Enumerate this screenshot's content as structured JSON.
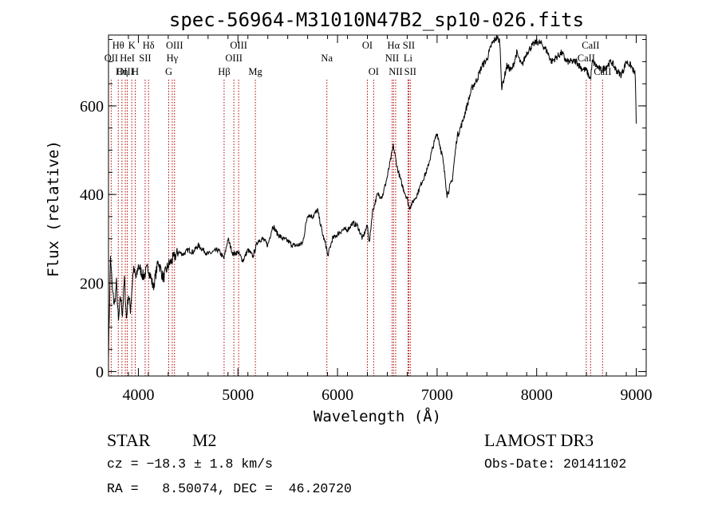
{
  "chart_data": {
    "type": "line",
    "title": "spec-56964-M31010N47B2_sp10-026.fits",
    "xlabel": "Wavelength (Å)",
    "ylabel": "Flux (relative)",
    "xlim": [
      3700,
      9100
    ],
    "ylim": [
      -10,
      760
    ],
    "x_ticks": [
      4000,
      5000,
      6000,
      7000,
      8000,
      9000
    ],
    "y_ticks": [
      0,
      200,
      400,
      600
    ],
    "x_minor_step": 200,
    "y_minor_step": 50,
    "spectrum": {
      "x": [
        3700,
        3720,
        3740,
        3760,
        3780,
        3800,
        3820,
        3840,
        3860,
        3880,
        3900,
        3920,
        3950,
        3980,
        4000,
        4050,
        4100,
        4150,
        4200,
        4250,
        4300,
        4350,
        4400,
        4450,
        4500,
        4550,
        4600,
        4700,
        4800,
        4860,
        4900,
        4950,
        5000,
        5050,
        5100,
        5150,
        5200,
        5250,
        5300,
        5350,
        5400,
        5450,
        5500,
        5550,
        5600,
        5650,
        5700,
        5750,
        5800,
        5850,
        5890,
        5900,
        5950,
        6000,
        6050,
        6100,
        6150,
        6200,
        6250,
        6300,
        6320,
        6350,
        6400,
        6450,
        6500,
        6560,
        6600,
        6650,
        6700,
        6720,
        6750,
        6800,
        6850,
        6900,
        6950,
        7000,
        7020,
        7050,
        7080,
        7100,
        7150,
        7200,
        7250,
        7300,
        7350,
        7400,
        7450,
        7500,
        7550,
        7600,
        7630,
        7650,
        7700,
        7750,
        7800,
        7850,
        7900,
        7950,
        8000,
        8050,
        8100,
        8150,
        8200,
        8250,
        8300,
        8350,
        8400,
        8450,
        8500,
        8540,
        8560,
        8600,
        8650,
        8700,
        8750,
        8800,
        8850,
        8900,
        8950,
        8990,
        9000
      ],
      "y": [
        40,
        260,
        180,
        150,
        200,
        110,
        170,
        130,
        210,
        120,
        175,
        140,
        230,
        210,
        240,
        215,
        235,
        190,
        250,
        210,
        240,
        255,
        270,
        265,
        275,
        270,
        285,
        265,
        275,
        255,
        300,
        265,
        270,
        250,
        275,
        260,
        295,
        300,
        285,
        330,
        310,
        300,
        295,
        285,
        285,
        290,
        355,
        350,
        365,
        310,
        280,
        260,
        300,
        310,
        320,
        320,
        335,
        330,
        300,
        330,
        290,
        360,
        400,
        395,
        440,
        510,
        460,
        420,
        390,
        370,
        380,
        400,
        430,
        455,
        500,
        540,
        520,
        490,
        440,
        400,
        430,
        530,
        560,
        600,
        640,
        660,
        690,
        705,
        740,
        755,
        745,
        640,
        690,
        680,
        720,
        690,
        720,
        735,
        745,
        740,
        725,
        700,
        710,
        720,
        700,
        700,
        700,
        685,
        680,
        660,
        700,
        690,
        680,
        690,
        700,
        680,
        670,
        700,
        690,
        670,
        560
      ],
      "color": "#000000"
    },
    "line_markers": [
      {
        "name": "Hθ",
        "wl": 3798,
        "row": 0
      },
      {
        "name": "OII",
        "wl": 3727,
        "row": 1
      },
      {
        "name": "OIII",
        "wl": 3869,
        "row": 2
      },
      {
        "name": "K",
        "wl": 3934,
        "row": 0
      },
      {
        "name": "HeI",
        "wl": 3889,
        "row": 1
      },
      {
        "name": "Hη",
        "wl": 3835,
        "row": 2
      },
      {
        "name": "SII",
        "wl": 4068,
        "row": 1
      },
      {
        "name": "H",
        "wl": 3969,
        "row": 2
      },
      {
        "name": "Hδ",
        "wl": 4102,
        "row": 0
      },
      {
        "name": "OIII",
        "wl": 4363,
        "row": 0
      },
      {
        "name": "Hγ",
        "wl": 4340,
        "row": 1
      },
      {
        "name": "G",
        "wl": 4305,
        "row": 2
      },
      {
        "name": "Hβ",
        "wl": 4861,
        "row": 2
      },
      {
        "name": "OIII",
        "wl": 5007,
        "row": 0
      },
      {
        "name": "OIII",
        "wl": 4959,
        "row": 1
      },
      {
        "name": "Mg",
        "wl": 5175,
        "row": 2
      },
      {
        "name": "Na",
        "wl": 5893,
        "row": 1
      },
      {
        "name": "OI",
        "wl": 6300,
        "row": 0
      },
      {
        "name": "OI",
        "wl": 6363,
        "row": 2
      },
      {
        "name": "Hα",
        "wl": 6563,
        "row": 0
      },
      {
        "name": "SII",
        "wl": 6716,
        "row": 0
      },
      {
        "name": "NII",
        "wl": 6548,
        "row": 1
      },
      {
        "name": "Li",
        "wl": 6708,
        "row": 1
      },
      {
        "name": "NII",
        "wl": 6584,
        "row": 2
      },
      {
        "name": "SII",
        "wl": 6731,
        "row": 2
      },
      {
        "name": "CaII",
        "wl": 8542,
        "row": 0
      },
      {
        "name": "CaII",
        "wl": 8498,
        "row": 1
      },
      {
        "name": "CaII",
        "wl": 8662,
        "row": 2
      }
    ],
    "marker_color": "#b40000"
  },
  "info": {
    "object_class": "STAR",
    "subclass": "M2",
    "survey": "LAMOST DR3",
    "cz": "cz = −18.3 ± 1.8 km/s",
    "obs_date": "Obs-Date: 20141102",
    "coords": "RA =   8.50074, DEC =  46.20720"
  }
}
